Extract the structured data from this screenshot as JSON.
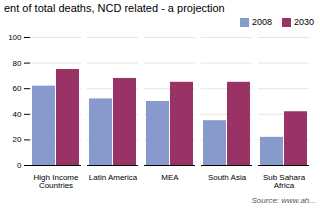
{
  "chart_data": {
    "type": "bar",
    "title": "ent of total deaths, NCD related - a projection",
    "categories": [
      "High Income\nCountries",
      "Latin America",
      "MEA",
      "South Asia",
      "Sub Sahara\nAfrica"
    ],
    "series": [
      {
        "name": "2008",
        "color": "#8899cc",
        "values": [
          62,
          52,
          50,
          35,
          22
        ]
      },
      {
        "name": "2030",
        "color": "#993366",
        "values": [
          75,
          68,
          65,
          65,
          42
        ]
      }
    ],
    "ylim": [
      0,
      100
    ],
    "yticks": [
      0,
      20,
      40,
      60,
      80,
      100
    ],
    "grid": true,
    "legend": "upper right",
    "annotations": [
      "Source: www.ah..."
    ]
  }
}
